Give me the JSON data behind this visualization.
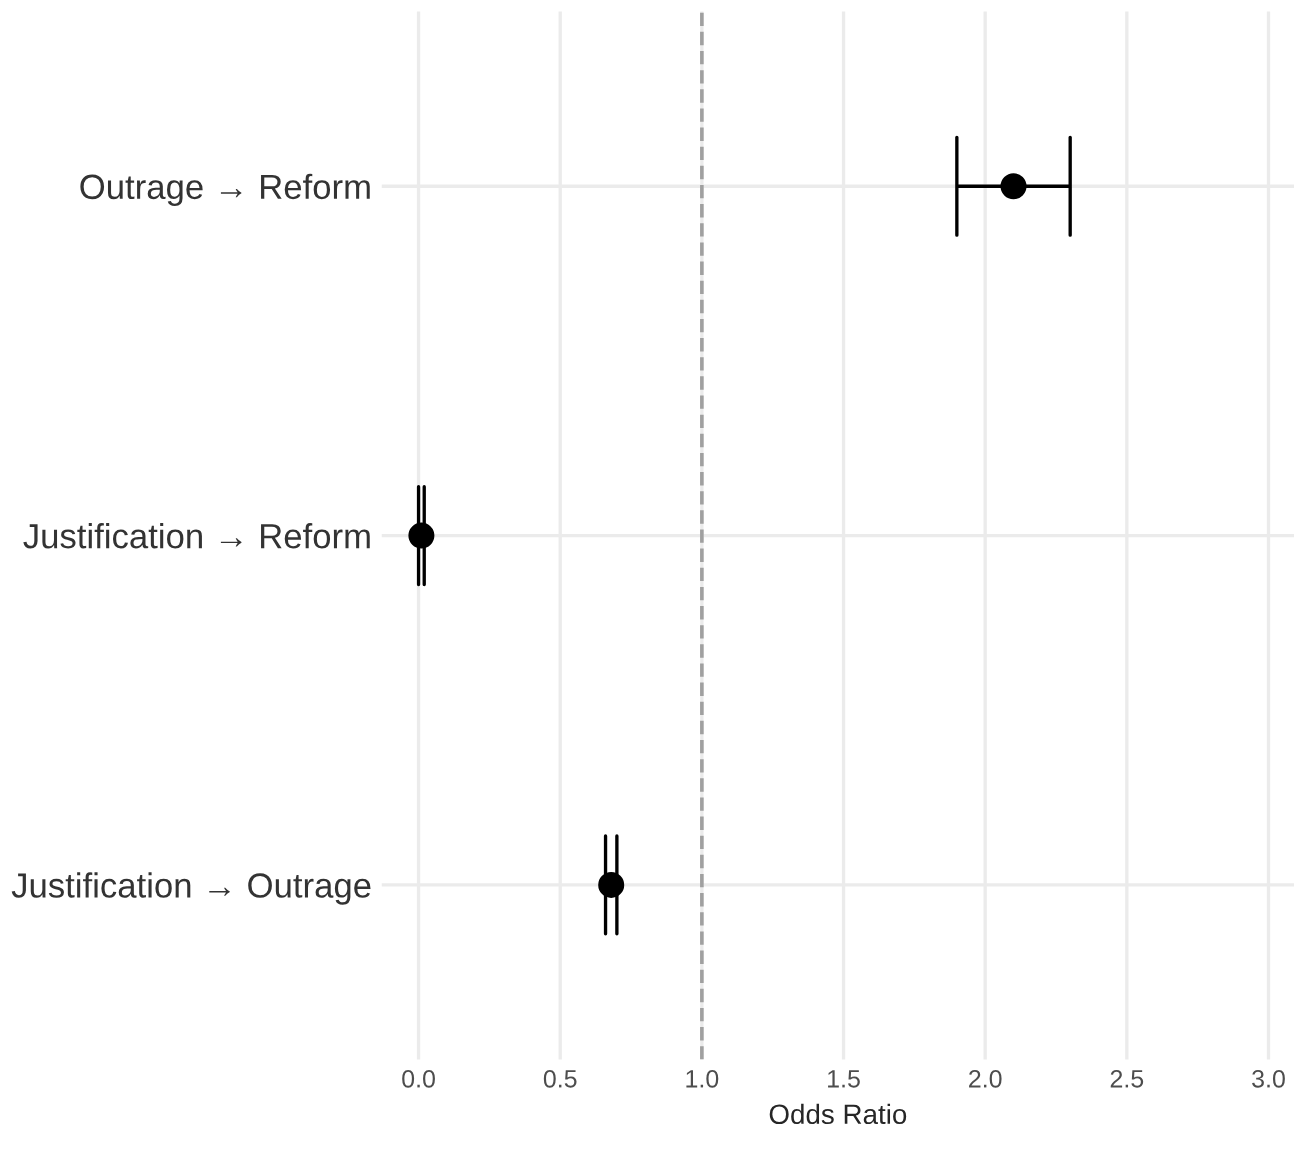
{
  "chart_data": {
    "type": "scatter",
    "orientation": "horizontal",
    "xlabel": "Odds Ratio",
    "categories": [
      "Outrage → Reform",
      "Justification → Reform",
      "Justification → Outrage"
    ],
    "series": [
      {
        "color": "#000000",
        "values": [
          2.1,
          0.01,
          0.68
        ],
        "errors": [
          [
            1.9,
            2.3
          ],
          [
            0.0,
            0.02
          ],
          [
            0.66,
            0.7
          ]
        ]
      }
    ],
    "xlim": [
      -0.13,
      3.09
    ],
    "xticks": [
      {
        "value": 0,
        "label": "0.0"
      },
      0.5,
      {
        "value": 1,
        "label": "1.0"
      },
      1.5,
      {
        "value": 2,
        "label": "2.0"
      },
      2.5,
      {
        "value": 3,
        "label": "3.0"
      }
    ],
    "ref_lines": [
      {
        "axis": "x",
        "value": 1,
        "color": "#a0a0a0",
        "line_style": "dashed"
      }
    ],
    "grid": true,
    "marker": "circle",
    "legend": false
  }
}
